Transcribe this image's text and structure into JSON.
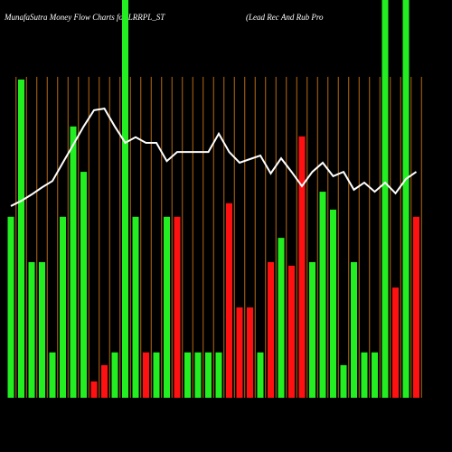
{
  "chart_data": {
    "type": "bar",
    "title": "MunafaSutra  Money Flow  Charts for LRRPL_ST",
    "subtitle": "(Lead Rec And Rub Pro",
    "categories": [
      null,
      null,
      null,
      null,
      null,
      null,
      null,
      null,
      null,
      null,
      null,
      null,
      null,
      null,
      null,
      null,
      null,
      null,
      null,
      null,
      null,
      null,
      null,
      null,
      null,
      null,
      null,
      null,
      null,
      null,
      null,
      null,
      null,
      null,
      null,
      null,
      null,
      null,
      null,
      null
    ],
    "values": [
      45.5,
      80,
      34.1,
      34.1,
      11.4,
      45.5,
      68.2,
      56.8,
      4.1,
      8.2,
      11.4,
      100,
      45.5,
      11.4,
      11.4,
      45.5,
      45.5,
      11.4,
      11.4,
      11.4,
      11.4,
      48.9,
      22.7,
      22.7,
      11.4,
      34.1,
      40.2,
      33.2,
      65.7,
      34.1,
      51.8,
      47.3,
      8.2,
      34.1,
      11.4,
      11.4,
      100,
      27.7,
      100,
      45.5
    ],
    "colors": [
      "#22ee22",
      "#22ee22",
      "#22ee22",
      "#22ee22",
      "#22ee22",
      "#22ee22",
      "#22ee22",
      "#22ee22",
      "#ff1111",
      "#ff1111",
      "#22ee22",
      "#22ee22",
      "#22ee22",
      "#ff1111",
      "#22ee22",
      "#22ee22",
      "#ff1111",
      "#22ee22",
      "#22ee22",
      "#22ee22",
      "#22ee22",
      "#ff1111",
      "#ff1111",
      "#ff1111",
      "#22ee22",
      "#ff1111",
      "#22ee22",
      "#ff1111",
      "#ff1111",
      "#22ee22",
      "#22ee22",
      "#22ee22",
      "#22ee22",
      "#22ee22",
      "#22ee22",
      "#22ee22",
      "#22ee22",
      "#ff1111",
      "#22ee22",
      "#ff1111"
    ],
    "line": {
      "color": "#ffffff",
      "values": [
        48.2,
        49.5,
        51.1,
        52.9,
        54.5,
        59.1,
        63.6,
        68.2,
        72.3,
        72.7,
        68.2,
        64.1,
        65.5,
        64.1,
        64.1,
        59.5,
        61.8,
        61.8,
        61.8,
        61.8,
        66.4,
        61.8,
        59.1,
        60,
        60.9,
        56.4,
        60.2,
        56.8,
        53.2,
        56.8,
        59.1,
        55.7,
        56.8,
        52.3,
        54.1,
        51.8,
        54.1,
        51.4,
        55,
        56.8
      ]
    },
    "ylim": [
      0,
      100
    ]
  }
}
